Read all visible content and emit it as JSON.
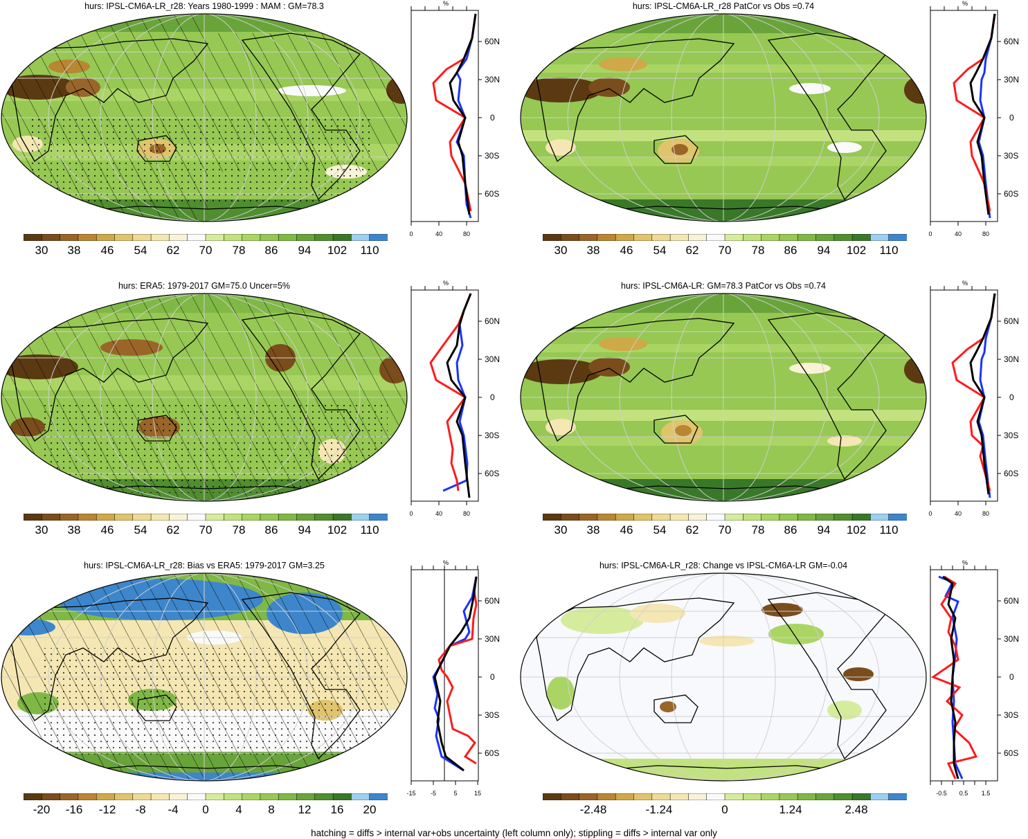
{
  "footer": "hatching = diffs > internal var+obs uncertainty (left column only); stippling = diffs > internal var only",
  "lat_labels": [
    "60N",
    "30N",
    "0",
    "30S",
    "60S"
  ],
  "colors": {
    "abs_palette": [
      "#5b3a12",
      "#7a4d1c",
      "#9a6528",
      "#b98632",
      "#cfa848",
      "#e0c46c",
      "#eed995",
      "#f4e7b3",
      "#f8f2d7",
      "#fafafa",
      "#d6ec9d",
      "#c1e27e",
      "#aad564",
      "#96c853",
      "#80b846",
      "#69a43b",
      "#508e30",
      "#397829",
      "#9dd0ef",
      "#3d86cc"
    ],
    "bias_palette": [
      "#5b3a12",
      "#7a4d1c",
      "#9a6528",
      "#b98632",
      "#cfa848",
      "#e0c46c",
      "#eed995",
      "#f4e7b3",
      "#f8f2d7",
      "#fafafa",
      "#d6ec9d",
      "#c1e27e",
      "#aad564",
      "#96c853",
      "#80b846",
      "#69a43b",
      "#508e30",
      "#397829",
      "#9dd0ef",
      "#3d86cc"
    ],
    "model_line": "#000000",
    "obs_line": "#ff1a1a",
    "other_line": "#1a33ff"
  },
  "panels": [
    {
      "id": "p1",
      "title": "hurs: IPSL-CM6A-LR_r28: Years 1980-1999 : MAM : GM=78.3",
      "cbar_labels": [
        "30",
        "38",
        "46",
        "54",
        "62",
        "70",
        "78",
        "86",
        "94",
        "102",
        "110"
      ],
      "prof_unit": "%",
      "prof_xticks": [
        "0",
        "40",
        "80"
      ],
      "hatching": true
    },
    {
      "id": "p2",
      "title": "hurs: IPSL-CM6A-LR_r28 PatCor vs Obs =0.74",
      "cbar_labels": [
        "30",
        "38",
        "46",
        "54",
        "62",
        "70",
        "78",
        "86",
        "94",
        "102",
        "110"
      ],
      "prof_unit": "%",
      "prof_xticks": [
        "0",
        "40",
        "80"
      ],
      "hatching": false
    },
    {
      "id": "p3",
      "title": "hurs: ERA5: 1979-2017 GM=75.0 Uncer=5%",
      "cbar_labels": [
        "30",
        "38",
        "46",
        "54",
        "62",
        "70",
        "78",
        "86",
        "94",
        "102",
        "110"
      ],
      "prof_unit": "%",
      "prof_xticks": [
        "0",
        "40",
        "80"
      ],
      "hatching": true
    },
    {
      "id": "p4",
      "title": "hurs: IPSL-CM6A-LR: GM=78.3 PatCor vs Obs =0.74",
      "cbar_labels": [
        "30",
        "38",
        "46",
        "54",
        "62",
        "70",
        "78",
        "86",
        "94",
        "102",
        "110"
      ],
      "prof_unit": "%",
      "prof_xticks": [
        "0",
        "40",
        "80"
      ],
      "hatching": false
    },
    {
      "id": "p5",
      "title": "hurs: IPSL-CM6A-LR_r28: Bias vs ERA5: 1979-2017 GM=3.25",
      "cbar_labels": [
        "-20",
        "-16",
        "-12",
        "-8",
        "-4",
        "0",
        "4",
        "8",
        "12",
        "16",
        "20"
      ],
      "prof_unit": "%",
      "prof_xticks": [
        "-15",
        "-5",
        "5",
        "15"
      ],
      "hatching": true
    },
    {
      "id": "p6",
      "title": "hurs: IPSL-CM6A-LR_r28: Change vs IPSL-CM6A-LR GM=-0.04",
      "cbar_labels": [
        "-2.48",
        "-1.24",
        "0",
        "1.24",
        "2.48"
      ],
      "prof_unit": "%",
      "prof_xticks": [
        "-0.5",
        "0.5",
        "1.5"
      ],
      "hatching": false
    }
  ]
}
